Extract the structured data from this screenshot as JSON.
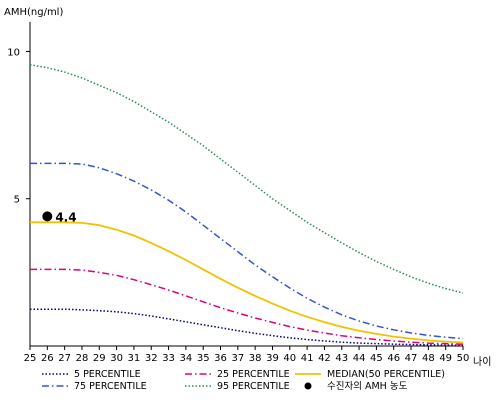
{
  "chart_data": {
    "type": "line",
    "ylabel": "AMH(ng/ml)",
    "xlabel": "나이",
    "xlim": [
      25,
      50
    ],
    "ylim": [
      0,
      11
    ],
    "x_ticks": [
      25,
      26,
      27,
      28,
      29,
      30,
      31,
      32,
      33,
      34,
      35,
      36,
      37,
      38,
      39,
      40,
      41,
      42,
      43,
      44,
      45,
      46,
      47,
      48,
      49,
      50
    ],
    "y_ticks": [
      5,
      10
    ],
    "x": [
      25,
      26,
      27,
      28,
      29,
      30,
      31,
      32,
      33,
      34,
      35,
      36,
      37,
      38,
      39,
      40,
      41,
      42,
      43,
      44,
      45,
      46,
      47,
      48,
      49,
      50
    ],
    "series": [
      {
        "name": "5 PERCENTILE",
        "color": "#000080",
        "dash": "dotted",
        "values": [
          1.25,
          1.25,
          1.25,
          1.23,
          1.2,
          1.16,
          1.1,
          1.02,
          0.92,
          0.82,
          0.72,
          0.62,
          0.52,
          0.43,
          0.35,
          0.28,
          0.22,
          0.17,
          0.13,
          0.1,
          0.08,
          0.06,
          0.05,
          0.04,
          0.03,
          0.02
        ]
      },
      {
        "name": "75 PERCENTILE",
        "color": "#3355cc",
        "dash": "dashdot",
        "values": [
          6.2,
          6.2,
          6.2,
          6.18,
          6.05,
          5.85,
          5.6,
          5.3,
          4.95,
          4.55,
          4.1,
          3.65,
          3.2,
          2.75,
          2.35,
          1.97,
          1.62,
          1.32,
          1.06,
          0.85,
          0.68,
          0.55,
          0.44,
          0.36,
          0.3,
          0.25
        ]
      },
      {
        "name": "25 PERCENTILE",
        "color": "#e0007a",
        "dash": "dashdot",
        "values": [
          2.6,
          2.6,
          2.6,
          2.58,
          2.5,
          2.4,
          2.25,
          2.08,
          1.9,
          1.7,
          1.5,
          1.3,
          1.12,
          0.95,
          0.8,
          0.66,
          0.54,
          0.44,
          0.35,
          0.28,
          0.22,
          0.17,
          0.13,
          0.1,
          0.08,
          0.06
        ]
      },
      {
        "name": "95 PERCENTILE",
        "color": "#2e8b57",
        "dash": "dotted",
        "values": [
          9.55,
          9.45,
          9.3,
          9.1,
          8.85,
          8.6,
          8.3,
          7.95,
          7.6,
          7.2,
          6.8,
          6.35,
          5.9,
          5.45,
          5.0,
          4.6,
          4.2,
          3.85,
          3.5,
          3.17,
          2.87,
          2.6,
          2.35,
          2.13,
          1.95,
          1.8
        ]
      },
      {
        "name": "MEDIAN(50 PERCENTILE)",
        "color": "#f2c200",
        "dash": "solid",
        "values": [
          4.2,
          4.2,
          4.2,
          4.18,
          4.1,
          3.95,
          3.75,
          3.5,
          3.22,
          2.92,
          2.6,
          2.28,
          1.98,
          1.7,
          1.44,
          1.2,
          0.99,
          0.81,
          0.65,
          0.52,
          0.41,
          0.32,
          0.25,
          0.19,
          0.15,
          0.12
        ]
      }
    ],
    "point": {
      "label": "수진자의 AMH 농도",
      "x": 26,
      "y": 4.4,
      "value_label": "4.4",
      "color": "#000000"
    },
    "legend": {
      "position": "bottom",
      "rows": [
        [
          "5 PERCENTILE",
          "25 PERCENTILE",
          "MEDIAN(50 PERCENTILE)"
        ],
        [
          "75 PERCENTILE",
          "95 PERCENTILE",
          "수진자의 AMH 농도"
        ]
      ]
    },
    "grid": false
  }
}
